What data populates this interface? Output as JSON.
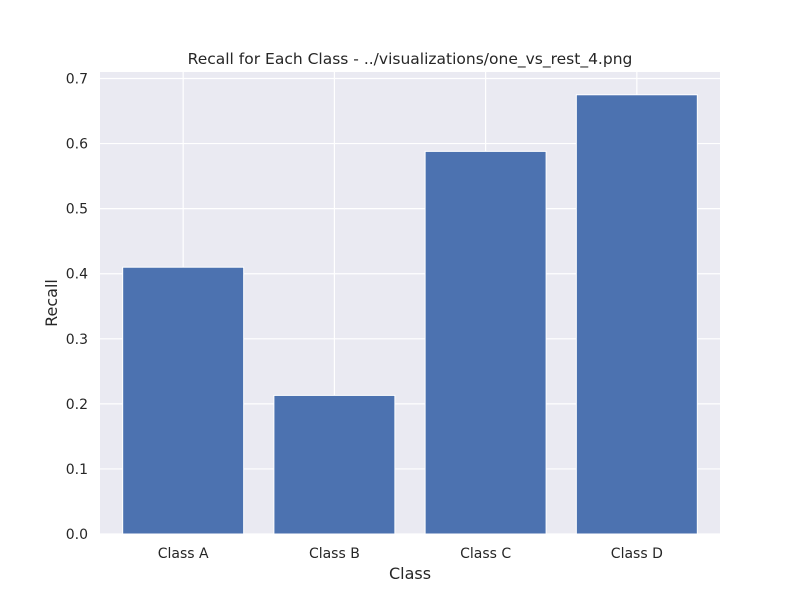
{
  "chart_data": {
    "type": "bar",
    "title": "Recall for Each Class - ../visualizations/one_vs_rest_4.png",
    "xlabel": "Class",
    "ylabel": "Recall",
    "categories": [
      "Class A",
      "Class B",
      "Class C",
      "Class D"
    ],
    "values": [
      0.41,
      0.213,
      0.588,
      0.675
    ],
    "ylim": [
      0,
      0.71
    ],
    "yticks": [
      0.0,
      0.1,
      0.2,
      0.3,
      0.4,
      0.5,
      0.6,
      0.7
    ],
    "ytick_labels": [
      "0.0",
      "0.1",
      "0.2",
      "0.3",
      "0.4",
      "0.5",
      "0.6",
      "0.7"
    ],
    "grid": true,
    "bar_color": "#4c72b0",
    "background_color": "#eaeaf2",
    "grid_color": "#ffffff"
  }
}
